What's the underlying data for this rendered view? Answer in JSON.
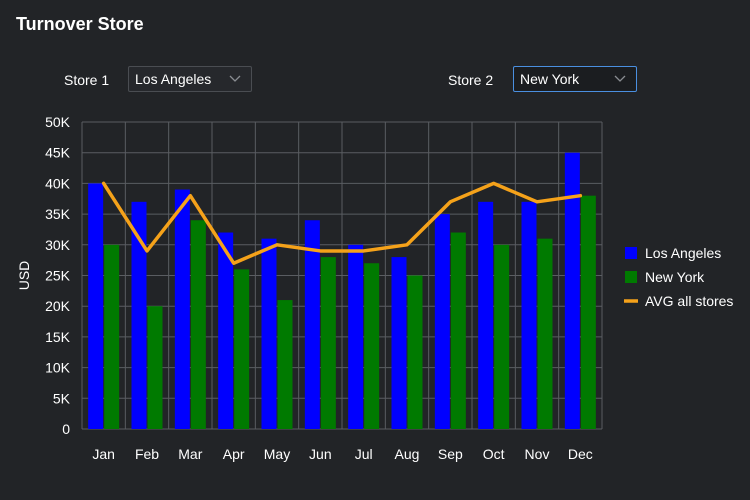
{
  "title": "Turnover Store",
  "filters": {
    "store1_label": "Store 1",
    "store1_value": "Los Angeles",
    "store2_label": "Store 2",
    "store2_value": "New York"
  },
  "colors": {
    "background": "#222427",
    "grid": "#5a5d62",
    "series_la": "#0000ff",
    "series_ny": "#007a00",
    "avg_line": "#f5a21a",
    "focus_border": "#4a8fe0"
  },
  "chart_data": {
    "type": "bar",
    "title": "",
    "xlabel": "",
    "ylabel": "USD",
    "ylim": [
      0,
      50000
    ],
    "yticks": [
      0,
      5000,
      10000,
      15000,
      20000,
      25000,
      30000,
      35000,
      40000,
      45000,
      50000
    ],
    "ytick_labels": [
      "0",
      "5K",
      "10K",
      "15K",
      "20K",
      "25K",
      "30K",
      "35K",
      "40K",
      "45K",
      "50K"
    ],
    "categories": [
      "Jan",
      "Feb",
      "Mar",
      "Apr",
      "May",
      "Jun",
      "Jul",
      "Aug",
      "Sep",
      "Oct",
      "Nov",
      "Dec"
    ],
    "series": [
      {
        "name": "Los Angeles",
        "kind": "bar",
        "color": "#0000ff",
        "values": [
          40000,
          37000,
          39000,
          32000,
          31000,
          34000,
          30000,
          28000,
          35000,
          37000,
          37000,
          45000
        ]
      },
      {
        "name": "New York",
        "kind": "bar",
        "color": "#007a00",
        "values": [
          30000,
          20000,
          34000,
          26000,
          21000,
          28000,
          27000,
          25000,
          32000,
          30000,
          31000,
          38000
        ]
      },
      {
        "name": "AVG all stores",
        "kind": "line",
        "color": "#f5a21a",
        "values": [
          40000,
          29000,
          38000,
          27000,
          30000,
          29000,
          29000,
          30000,
          37000,
          40000,
          37000,
          38000
        ]
      }
    ],
    "grid": true,
    "legend_position": "right"
  }
}
